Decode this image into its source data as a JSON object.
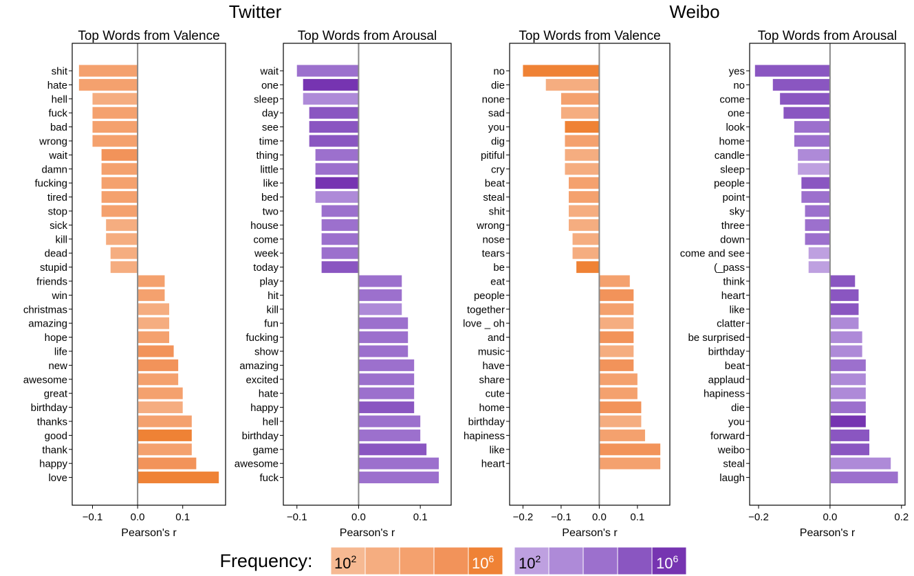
{
  "groups": [
    {
      "label": "Twitter"
    },
    {
      "label": "Weibo"
    }
  ],
  "colors": {
    "orange": [
      "#f6b992",
      "#f5ad80",
      "#f4a16e",
      "#f2935a",
      "#ef8235"
    ],
    "purple": [
      "#bea0e0",
      "#ae8ad8",
      "#9c70cd",
      "#8a56c1",
      "#7634b1"
    ],
    "zero_line": "#888888",
    "frame": "#000000"
  },
  "legend": {
    "label": "Frequency:",
    "orange_low": "10",
    "orange_low_exp": "2",
    "orange_high": "10",
    "orange_high_exp": "6",
    "purple_low": "10",
    "purple_low_exp": "2",
    "purple_high": "10",
    "purple_high_exp": "6"
  },
  "chart_data": [
    {
      "type": "bar",
      "orientation": "horizontal",
      "group": "Twitter",
      "palette": "orange",
      "title": "Top Words from Valence",
      "xlabel": "Pearson's r",
      "xlim": [
        -0.145,
        0.195
      ],
      "xticks": [
        -0.1,
        0.0,
        0.1
      ],
      "xtick_labels": [
        "−0.1",
        "0.0",
        "0.1"
      ],
      "categories": [
        "shit",
        "hate",
        "hell",
        "fuck",
        "bad",
        "wrong",
        "wait",
        "damn",
        "fucking",
        "tired",
        "stop",
        "sick",
        "kill",
        "dead",
        "stupid",
        "friends",
        "win",
        "christmas",
        "amazing",
        "hope",
        "life",
        "new",
        "awesome",
        "great",
        "birthday",
        "thanks",
        "good",
        "thank",
        "happy",
        "love"
      ],
      "values": [
        -0.13,
        -0.13,
        -0.1,
        -0.1,
        -0.1,
        -0.1,
        -0.08,
        -0.08,
        -0.08,
        -0.08,
        -0.08,
        -0.07,
        -0.07,
        -0.06,
        -0.06,
        0.06,
        0.06,
        0.07,
        0.07,
        0.07,
        0.08,
        0.09,
        0.09,
        0.1,
        0.1,
        0.12,
        0.12,
        0.12,
        0.13,
        0.18
      ],
      "frequency_level": [
        2,
        2,
        1,
        2,
        2,
        2,
        3,
        2,
        2,
        2,
        2,
        1,
        1,
        1,
        1,
        2,
        2,
        1,
        1,
        2,
        3,
        3,
        2,
        2,
        1,
        2,
        4,
        2,
        3,
        4
      ]
    },
    {
      "type": "bar",
      "orientation": "horizontal",
      "group": "Twitter",
      "palette": "purple",
      "title": "Top Words from Arousal",
      "xlabel": "Pearson's r",
      "xlim": [
        -0.122,
        0.15
      ],
      "xticks": [
        -0.1,
        0.0,
        0.1
      ],
      "xtick_labels": [
        "−0.1",
        "0.0",
        "0.1"
      ],
      "categories": [
        "wait",
        "one",
        "sleep",
        "day",
        "see",
        "time",
        "thing",
        "little",
        "like",
        "bed",
        "two",
        "house",
        "come",
        "week",
        "today",
        "play",
        "hit",
        "kill",
        "fun",
        "fucking",
        "show",
        "amazing",
        "excited",
        "hate",
        "happy",
        "hell",
        "birthday",
        "game",
        "awesome",
        "fuck"
      ],
      "values": [
        -0.1,
        -0.09,
        -0.09,
        -0.08,
        -0.08,
        -0.08,
        -0.07,
        -0.07,
        -0.07,
        -0.07,
        -0.06,
        -0.06,
        -0.06,
        -0.06,
        -0.06,
        0.07,
        0.07,
        0.07,
        0.08,
        0.08,
        0.08,
        0.09,
        0.09,
        0.09,
        0.09,
        0.1,
        0.1,
        0.11,
        0.13,
        0.13
      ],
      "frequency_level": [
        2,
        4,
        1,
        3,
        3,
        3,
        2,
        2,
        4,
        1,
        2,
        2,
        2,
        2,
        3,
        2,
        2,
        1,
        2,
        2,
        2,
        2,
        2,
        2,
        3,
        2,
        2,
        3,
        2,
        2
      ]
    },
    {
      "type": "bar",
      "orientation": "horizontal",
      "group": "Weibo",
      "palette": "orange",
      "title": "Top Words from Valence",
      "xlabel": "Pearson's r",
      "xlim": [
        -0.235,
        0.185
      ],
      "xticks": [
        -0.2,
        -0.1,
        0.0,
        0.1
      ],
      "xtick_labels": [
        "−0.2",
        "−0.1",
        "0.0",
        "0.1"
      ],
      "categories": [
        "no",
        "die",
        "none",
        "sad",
        "you",
        "dig",
        "pitiful",
        "cry",
        "beat",
        "steal",
        "shit",
        "wrong",
        "nose",
        "tears",
        "be",
        "eat",
        "people",
        "together",
        "love _ oh",
        "and",
        "music",
        "have",
        "share",
        "cute",
        "home",
        "birthday",
        "hapiness",
        "like",
        "heart"
      ],
      "values": [
        -0.2,
        -0.14,
        -0.1,
        -0.1,
        -0.09,
        -0.09,
        -0.09,
        -0.09,
        -0.08,
        -0.08,
        -0.08,
        -0.08,
        -0.07,
        -0.07,
        -0.06,
        0.08,
        0.09,
        0.09,
        0.09,
        0.09,
        0.09,
        0.09,
        0.1,
        0.1,
        0.11,
        0.11,
        0.12,
        0.16,
        0.16
      ],
      "frequency_level": [
        4,
        1,
        2,
        1,
        4,
        2,
        1,
        1,
        2,
        2,
        1,
        1,
        1,
        1,
        4,
        2,
        3,
        2,
        1,
        3,
        1,
        3,
        2,
        2,
        3,
        1,
        2,
        3,
        2
      ]
    },
    {
      "type": "bar",
      "orientation": "horizontal",
      "group": "Weibo",
      "palette": "purple",
      "title": "Top Words from Arousal",
      "xlabel": "Pearson's r",
      "xlim": [
        -0.225,
        0.21
      ],
      "xticks": [
        -0.2,
        0.0,
        0.2
      ],
      "xtick_labels": [
        "−0.2",
        "0.0",
        "0.2"
      ],
      "categories": [
        "yes",
        "no",
        "come",
        "one",
        "look",
        "home",
        "candle",
        "sleep",
        "people",
        "point",
        "sky",
        "three",
        "down",
        "come and see",
        "(_pass",
        "think",
        "heart",
        "like",
        "clatter",
        "be surprised",
        "birthday",
        "beat",
        "applaud",
        "hapiness",
        "die",
        "you",
        "forward",
        "weibo",
        "steal",
        "laugh"
      ],
      "values": [
        -0.21,
        -0.16,
        -0.14,
        -0.13,
        -0.1,
        -0.1,
        -0.09,
        -0.09,
        -0.08,
        -0.08,
        -0.07,
        -0.07,
        -0.07,
        -0.06,
        -0.06,
        0.07,
        0.08,
        0.08,
        0.08,
        0.09,
        0.09,
        0.1,
        0.1,
        0.1,
        0.1,
        0.1,
        0.11,
        0.11,
        0.17,
        0.19
      ],
      "frequency_level": [
        3,
        3,
        3,
        3,
        2,
        2,
        1,
        0,
        3,
        2,
        2,
        2,
        2,
        0,
        0,
        3,
        3,
        3,
        1,
        1,
        1,
        2,
        1,
        1,
        2,
        4,
        3,
        3,
        1,
        2
      ]
    }
  ]
}
